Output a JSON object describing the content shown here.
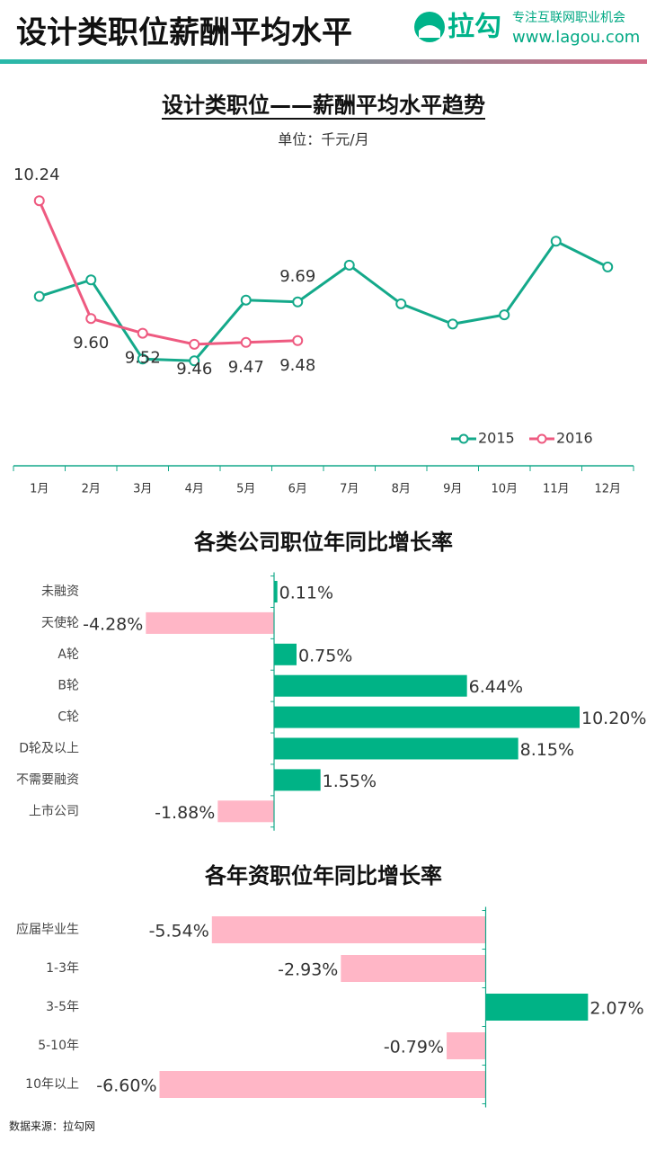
{
  "header": {
    "title": "设计类职位薪酬平均水平",
    "brand": "拉勾",
    "slogan": "专注互联网职业机会",
    "url": "www.lagou.com"
  },
  "footer": {
    "source": "数据来源：拉勾网"
  },
  "chart_data": [
    {
      "type": "line",
      "title": "设计类职位——薪酬平均水平趋势",
      "subtitle": "单位：千元/月",
      "categories": [
        "1月",
        "2月",
        "3月",
        "4月",
        "5月",
        "6月",
        "7月",
        "8月",
        "9月",
        "10月",
        "11月",
        "12月"
      ],
      "ylim": [
        9.0,
        10.5
      ],
      "series": [
        {
          "name": "2015",
          "color": "#14a98a",
          "values": [
            9.72,
            9.81,
            9.38,
            9.37,
            9.7,
            9.69,
            9.89,
            9.68,
            9.57,
            9.62,
            10.02,
            9.88
          ],
          "value_labels": [
            null,
            null,
            null,
            null,
            null,
            "9.69",
            null,
            null,
            null,
            null,
            null,
            null
          ]
        },
        {
          "name": "2016",
          "color": "#ee5a80",
          "values": [
            10.24,
            9.6,
            9.52,
            9.46,
            9.47,
            9.48,
            null,
            null,
            null,
            null,
            null,
            null
          ],
          "value_labels": [
            "10.24",
            "9.60",
            "9.52",
            "9.46",
            "9.47",
            "9.48",
            null,
            null,
            null,
            null,
            null,
            null
          ]
        }
      ],
      "legend": "bottom-right"
    },
    {
      "type": "hbar",
      "title": "各类公司职位年同比增长率",
      "categories": [
        "未融资",
        "天使轮",
        "A轮",
        "B轮",
        "C轮",
        "D轮及以上",
        "不需要融资",
        "上市公司"
      ],
      "values": [
        0.11,
        -4.28,
        0.75,
        6.44,
        10.2,
        8.15,
        1.55,
        -1.88
      ],
      "value_labels": [
        "0.11%",
        "-4.28%",
        "0.75%",
        "6.44%",
        "10.20%",
        "8.15%",
        "1.55%",
        "-1.88%"
      ],
      "positive_color": "#00b386",
      "negative_color": "#ffb6c6",
      "xlim": [
        -4.5,
        11.25
      ]
    },
    {
      "type": "hbar",
      "title": "各年资职位年同比增长率",
      "categories": [
        "应届毕业生",
        "1-3年",
        "3-5年",
        "5-10年",
        "10年以上"
      ],
      "values": [
        -5.54,
        -2.93,
        2.07,
        -0.79,
        -6.6
      ],
      "value_labels": [
        "-5.54%",
        "-2.93%",
        "2.07%",
        "-0.79%",
        "-6.60%"
      ],
      "positive_color": "#00b386",
      "negative_color": "#ffb6c6",
      "xlim": [
        -7.1,
        2.9
      ]
    }
  ]
}
